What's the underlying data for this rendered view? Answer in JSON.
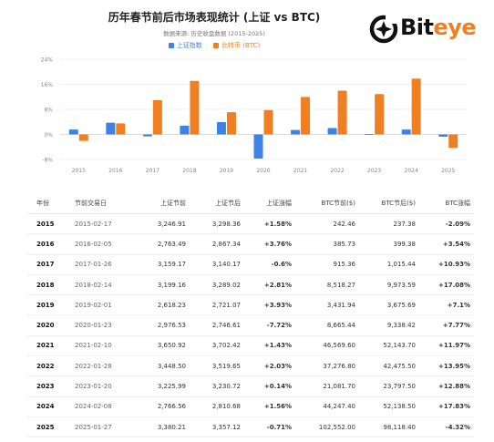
{
  "title": "历年春节前后市场表现统计 (上证 vs BTC)",
  "subtitle": "数据来源: 历史收盘数据 (2015-2025)",
  "legend": {
    "sh": "上证指数",
    "btc": "比特币 (BTC)"
  },
  "logo": {
    "text_dark": "Bit",
    "text_accent": "eye"
  },
  "colors": {
    "sh": "#3d82e6",
    "btc": "#f07f22",
    "positive": "#1f9d3a",
    "negative": "#e23434"
  },
  "chart_data": {
    "type": "bar",
    "categories": [
      "2015",
      "2016",
      "2017",
      "2018",
      "2019",
      "2020",
      "2021",
      "2022",
      "2023",
      "2024",
      "2025"
    ],
    "series": [
      {
        "name": "上证指数",
        "values": [
          1.58,
          3.76,
          -0.6,
          2.81,
          3.93,
          -7.72,
          1.43,
          2.03,
          0.14,
          1.56,
          -0.71
        ]
      },
      {
        "name": "比特币 (BTC)",
        "values": [
          -2.09,
          3.54,
          10.93,
          17.08,
          7.1,
          7.77,
          11.97,
          13.95,
          12.88,
          17.83,
          -4.32
        ]
      }
    ],
    "yticks": [
      "24%",
      "16%",
      "8%",
      "0%",
      "-8%"
    ],
    "ylim": [
      -8,
      24
    ],
    "grid": true
  },
  "table": {
    "headers": [
      "年份",
      "节前交易日",
      "上证节前",
      "上证节后",
      "上证涨幅",
      "BTC节前($)",
      "BTC节后($)",
      "BTC涨幅"
    ],
    "rows": [
      [
        "2015",
        "2015-02-17",
        "3,246.91",
        "3,298.36",
        "+1.58%",
        "242.46",
        "237.38",
        "-2.09%"
      ],
      [
        "2016",
        "2016-02-05",
        "2,763.49",
        "2,867.34",
        "+3.76%",
        "385.73",
        "399.38",
        "+3.54%"
      ],
      [
        "2017",
        "2017-01-26",
        "3,159.17",
        "3,140.17",
        "-0.6%",
        "915.36",
        "1,015.44",
        "+10.93%"
      ],
      [
        "2018",
        "2018-02-14",
        "3,199.16",
        "3,289.02",
        "+2.81%",
        "8,518.27",
        "9,973.59",
        "+17.08%"
      ],
      [
        "2019",
        "2019-02-01",
        "2,618.23",
        "2,721.07",
        "+3.93%",
        "3,431.94",
        "3,675.69",
        "+7.1%"
      ],
      [
        "2020",
        "2020-01-23",
        "2,976.53",
        "2,746.61",
        "-7.72%",
        "8,665.44",
        "9,338.42",
        "+7.77%"
      ],
      [
        "2021",
        "2021-02-10",
        "3,650.92",
        "3,702.42",
        "+1.43%",
        "46,569.60",
        "52,143.70",
        "+11.97%"
      ],
      [
        "2022",
        "2022-01-28",
        "3,448.50",
        "3,519.65",
        "+2.03%",
        "37,276.80",
        "42,475.50",
        "+13.95%"
      ],
      [
        "2023",
        "2023-01-20",
        "3,225.99",
        "3,230.72",
        "+0.14%",
        "21,081.70",
        "23,797.50",
        "+12.88%"
      ],
      [
        "2024",
        "2024-02-08",
        "2,766.56",
        "2,810.68",
        "+1.56%",
        "44,247.40",
        "52,138.50",
        "+17.83%"
      ],
      [
        "2025",
        "2025-01-27",
        "3,380.21",
        "3,357.12",
        "-0.71%",
        "102,552.00",
        "98,118.40",
        "-4.32%"
      ]
    ]
  }
}
